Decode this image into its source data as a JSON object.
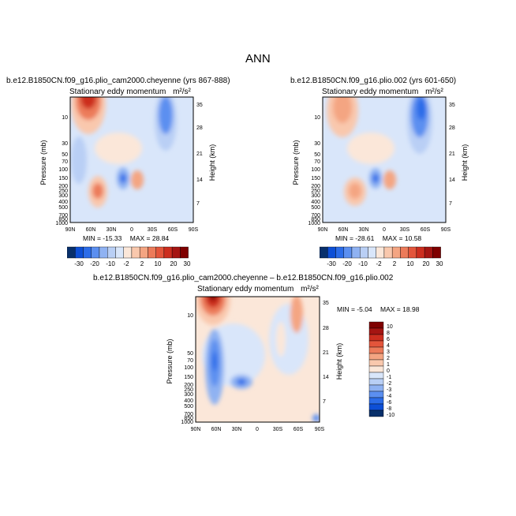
{
  "page_title": "ANN",
  "colors": {
    "diverging": [
      "#08306b",
      "#0d4fd6",
      "#2b6ce8",
      "#5b8ff0",
      "#8fb2f2",
      "#b9cff5",
      "#d9e6fa",
      "#fbe7d9",
      "#f9c8ad",
      "#f4a582",
      "#ec7b5a",
      "#e3553b",
      "#cc2e1f",
      "#a51512",
      "#7f0000"
    ],
    "background_field": "#d9e6fa"
  },
  "chart_data": [
    {
      "type": "heatmap",
      "case_title": "b.e12.B1850CN.f09_g16.plio_cam2000.cheyenne (yrs 867-888)",
      "subtitle": "Stationary eddy momentum",
      "units": "m²/s²",
      "ylabel": "Pressure (mb)",
      "y2label": "Height (km)",
      "x_ticks": [
        "90N",
        "60N",
        "30N",
        "0",
        "30S",
        "60S",
        "90S"
      ],
      "p_ticks": [
        "10",
        "30",
        "50",
        "70",
        "100",
        "150",
        "200",
        "250",
        "300",
        "400",
        "500",
        "700",
        "850",
        "1000"
      ],
      "h_ticks": [
        "35",
        "28",
        "21",
        "14",
        "7"
      ],
      "min_label": "MIN =",
      "min_value": "-15.33",
      "max_label": "MAX =",
      "max_value": "28.84",
      "levels": [
        "-30",
        "-20",
        "-10",
        "-2",
        "2",
        "10",
        "20",
        "30"
      ],
      "features": [
        {
          "lat": 60,
          "p": 3,
          "value": 28.84
        },
        {
          "lat": 40,
          "p": 20,
          "value": 5
        },
        {
          "lat": -50,
          "p": 8,
          "value": -15
        },
        {
          "lat": 50,
          "p": 200,
          "value": 8
        },
        {
          "lat": 5,
          "p": 150,
          "value": -12
        },
        {
          "lat": -10,
          "p": 150,
          "value": 10
        },
        {
          "lat": 65,
          "p": 70,
          "value": -3
        }
      ]
    },
    {
      "type": "heatmap",
      "case_title": "b.e12.B1850CN.f09_g16.plio.002 (yrs 601-650)",
      "subtitle": "Stationary eddy momentum",
      "units": "m²/s²",
      "ylabel": "Pressure (mb)",
      "y2label": "Height (km)",
      "x_ticks": [
        "90N",
        "60N",
        "30N",
        "0",
        "30S",
        "60S",
        "90S"
      ],
      "p_ticks": [
        "10",
        "30",
        "50",
        "70",
        "100",
        "150",
        "200",
        "250",
        "300",
        "400",
        "500",
        "700",
        "850",
        "1000"
      ],
      "h_ticks": [
        "35",
        "28",
        "21",
        "14",
        "7"
      ],
      "min_label": "MIN =",
      "min_value": "-28.61",
      "max_label": "MAX =",
      "max_value": "10.58",
      "levels": [
        "-30",
        "-20",
        "-10",
        "-2",
        "2",
        "10",
        "20",
        "30"
      ],
      "features": [
        {
          "lat": 60,
          "p": 5,
          "value": 8
        },
        {
          "lat": -55,
          "p": 8,
          "value": -28.61
        },
        {
          "lat": 45,
          "p": 200,
          "value": 7
        },
        {
          "lat": 5,
          "p": 150,
          "value": -12
        },
        {
          "lat": -10,
          "p": 150,
          "value": 10.58
        }
      ]
    },
    {
      "type": "heatmap",
      "case_title": "b.e12.B1850CN.f09_g16.plio_cam2000.cheyenne – b.e12.B1850CN.f09_g16.plio.002",
      "subtitle": "Stationary eddy momentum",
      "units": "m²/s²",
      "ylabel": "Pressure (mb)",
      "y2label": "Height (km)",
      "x_ticks": [
        "90N",
        "60N",
        "30N",
        "0",
        "30S",
        "60S",
        "90S"
      ],
      "p_ticks": [
        "10",
        "50",
        "70",
        "100",
        "150",
        "200",
        "250",
        "300",
        "400",
        "500",
        "700",
        "850",
        "1000"
      ],
      "h_ticks": [
        "35",
        "28",
        "21",
        "14",
        "7"
      ],
      "min_label": "MIN =",
      "min_value": "-5.04",
      "max_label": "MAX =",
      "max_value": "18.98",
      "levels": [
        "10",
        "8",
        "6",
        "4",
        "3",
        "2",
        "1",
        "0",
        "-1",
        "-2",
        "-3",
        "-4",
        "-6",
        "-8",
        "-10"
      ],
      "features": [
        {
          "lat": 60,
          "p": 3,
          "value": 18.98
        },
        {
          "lat": 65,
          "p": 100,
          "value": -5.04
        },
        {
          "lat": 25,
          "p": 200,
          "value": -4
        },
        {
          "lat": -55,
          "p": 10,
          "value": 3
        },
        {
          "lat": 40,
          "p": 30,
          "value": 1
        }
      ]
    }
  ]
}
